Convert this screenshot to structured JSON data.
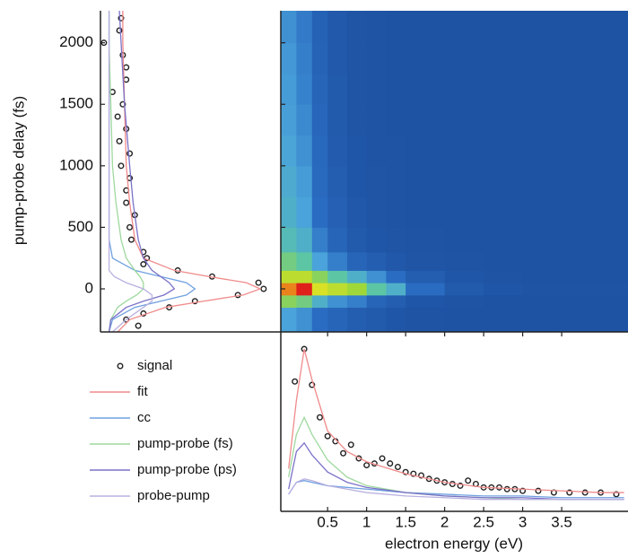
{
  "chart_data": [
    {
      "type": "line",
      "orientation": "horizontal",
      "ylabel": "pump-probe delay (fs)",
      "xlim": [
        -0.05,
        1.0
      ],
      "ylim": [
        -350,
        2260
      ],
      "yticks": [
        0,
        500,
        1000,
        1500,
        2000
      ],
      "series": [
        {
          "color": "#222222",
          "marker": "circle",
          "y": [
            -300,
            -250,
            -200,
            -150,
            -100,
            -50,
            0,
            50,
            100,
            150,
            200,
            250,
            300,
            400,
            500,
            600,
            700,
            800,
            900,
            1000,
            1100,
            1200,
            1300,
            1400,
            1500,
            1600,
            1700,
            1800,
            1900,
            2000,
            2100,
            2200
          ],
          "values": [
            0.17,
            0.1,
            0.2,
            0.35,
            0.5,
            0.75,
            0.9,
            0.87,
            0.6,
            0.4,
            0.2,
            0.22,
            0.2,
            0.13,
            0.12,
            0.15,
            0.1,
            0.1,
            0.12,
            0.07,
            0.12,
            0.06,
            0.1,
            0.05,
            0.08,
            0.02,
            0.1,
            0.1,
            0.08,
            -0.03,
            0.06,
            0.07
          ]
        },
        {
          "color": "#f08a8a",
          "y": [
            -350,
            -250,
            -150,
            -100,
            -50,
            0,
            50,
            100,
            150,
            250,
            400,
            700,
            1000,
            1500,
            2000,
            2260
          ],
          "values": [
            0.05,
            0.12,
            0.33,
            0.55,
            0.78,
            0.88,
            0.8,
            0.58,
            0.38,
            0.2,
            0.15,
            0.12,
            0.1,
            0.09,
            0.08,
            0.08
          ]
        },
        {
          "color": "#6fa0e0",
          "y": [
            -350,
            -250,
            -150,
            -100,
            -50,
            0,
            50,
            100,
            150,
            250,
            400,
            700,
            1000,
            1500,
            2000,
            2260
          ],
          "values": [
            0,
            0.02,
            0.15,
            0.3,
            0.45,
            0.5,
            0.45,
            0.3,
            0.15,
            0.02,
            0,
            0,
            0,
            0,
            0,
            0
          ]
        },
        {
          "color": "#9ed89e",
          "y": [
            -350,
            -250,
            -150,
            -100,
            -50,
            0,
            50,
            100,
            150,
            250,
            400,
            700,
            1000,
            1500,
            2000,
            2260
          ],
          "values": [
            0,
            0.01,
            0.05,
            0.1,
            0.16,
            0.2,
            0.2,
            0.18,
            0.15,
            0.1,
            0.07,
            0.04,
            0.02,
            0.01,
            0,
            0
          ]
        },
        {
          "color": "#7a72c8",
          "y": [
            -350,
            -250,
            -150,
            -100,
            -50,
            0,
            50,
            100,
            150,
            250,
            400,
            700,
            1000,
            1500,
            2000,
            2260
          ],
          "values": [
            0,
            0.01,
            0.1,
            0.2,
            0.32,
            0.38,
            0.35,
            0.3,
            0.25,
            0.2,
            0.17,
            0.14,
            0.12,
            0.09,
            0.07,
            0.06
          ]
        },
        {
          "color": "#b9b0e0",
          "y": [
            -350,
            -250,
            -150,
            -100,
            -50,
            0,
            50,
            100,
            150,
            250,
            400,
            700,
            1000,
            1500,
            2000,
            2260
          ],
          "values": [
            0.02,
            0.1,
            0.2,
            0.25,
            0.25,
            0.2,
            0.1,
            0.03,
            0,
            0,
            0,
            0,
            0,
            0,
            0,
            0
          ]
        }
      ]
    },
    {
      "type": "heatmap",
      "xbins": [
        -0.1,
        0.1,
        0.3,
        0.5,
        0.75,
        1,
        1.25,
        1.5,
        2,
        2.5,
        3,
        3.5,
        4.35
      ],
      "ybins": [
        -350,
        -150,
        -50,
        50,
        150,
        300,
        500,
        750,
        1000,
        1250,
        1500,
        1750,
        2000,
        2260
      ],
      "z": [
        [
          0.35,
          0.3,
          0.2,
          0.15,
          0.1,
          0.08,
          0.05,
          0.03,
          0.02,
          0.02,
          0.02,
          0.02
        ],
        [
          0.6,
          0.55,
          0.4,
          0.3,
          0.25,
          0.15,
          0.1,
          0.05,
          0.03,
          0.02,
          0.02,
          0.02
        ],
        [
          0.9,
          1.0,
          0.75,
          0.7,
          0.65,
          0.5,
          0.4,
          0.2,
          0.08,
          0.05,
          0.03,
          0.03
        ],
        [
          0.7,
          0.7,
          0.6,
          0.5,
          0.4,
          0.3,
          0.2,
          0.1,
          0.05,
          0.03,
          0.02,
          0.02
        ],
        [
          0.55,
          0.5,
          0.35,
          0.25,
          0.15,
          0.1,
          0.06,
          0.04,
          0.03,
          0.02,
          0.02,
          0.02
        ],
        [
          0.45,
          0.4,
          0.25,
          0.15,
          0.08,
          0.05,
          0.04,
          0.03,
          0.02,
          0.02,
          0.02,
          0.02
        ],
        [
          0.4,
          0.35,
          0.2,
          0.12,
          0.06,
          0.04,
          0.03,
          0.02,
          0.02,
          0.02,
          0.02,
          0.02
        ],
        [
          0.38,
          0.33,
          0.18,
          0.1,
          0.05,
          0.04,
          0.03,
          0.02,
          0.02,
          0.02,
          0.02,
          0.02
        ],
        [
          0.36,
          0.3,
          0.17,
          0.09,
          0.05,
          0.03,
          0.03,
          0.02,
          0.02,
          0.02,
          0.02,
          0.02
        ],
        [
          0.34,
          0.28,
          0.16,
          0.08,
          0.04,
          0.03,
          0.02,
          0.02,
          0.02,
          0.02,
          0.02,
          0.02
        ],
        [
          0.33,
          0.26,
          0.15,
          0.08,
          0.04,
          0.03,
          0.02,
          0.02,
          0.02,
          0.02,
          0.02,
          0.02
        ],
        [
          0.32,
          0.25,
          0.14,
          0.07,
          0.04,
          0.03,
          0.02,
          0.02,
          0.02,
          0.02,
          0.02,
          0.02
        ],
        [
          0.3,
          0.24,
          0.13,
          0.07,
          0.04,
          0.03,
          0.02,
          0.02,
          0.02,
          0.02,
          0.02,
          0.02
        ]
      ],
      "colorscale": [
        [
          0,
          "#1d4f9e"
        ],
        [
          0.2,
          "#2a6cc2"
        ],
        [
          0.35,
          "#4aa3da"
        ],
        [
          0.5,
          "#5cc6a4"
        ],
        [
          0.65,
          "#a0d83a"
        ],
        [
          0.8,
          "#f4e61c"
        ],
        [
          1,
          "#e0201a"
        ]
      ]
    },
    {
      "type": "line",
      "xlabel": "electron energy (eV)",
      "xlim": [
        -0.1,
        4.35
      ],
      "ylim": [
        -0.05,
        1.0
      ],
      "xticks": [
        0.5,
        1.0,
        1.5,
        2.0,
        2.5,
        3.0,
        3.5
      ],
      "series": [
        {
          "name": "signal",
          "color": "#222222",
          "marker": "circle",
          "x": [
            0.08,
            0.2,
            0.3,
            0.4,
            0.5,
            0.6,
            0.7,
            0.8,
            0.9,
            1.0,
            1.1,
            1.2,
            1.3,
            1.4,
            1.5,
            1.6,
            1.7,
            1.8,
            1.9,
            2.0,
            2.1,
            2.2,
            2.3,
            2.4,
            2.5,
            2.6,
            2.7,
            2.8,
            2.9,
            3.0,
            3.2,
            3.4,
            3.6,
            3.8,
            4.0,
            4.2
          ],
          "values": [
            0.71,
            0.9,
            0.69,
            0.5,
            0.39,
            0.36,
            0.29,
            0.34,
            0.26,
            0.22,
            0.23,
            0.26,
            0.23,
            0.21,
            0.18,
            0.17,
            0.16,
            0.14,
            0.13,
            0.12,
            0.11,
            0.1,
            0.13,
            0.11,
            0.09,
            0.09,
            0.09,
            0.08,
            0.08,
            0.07,
            0.07,
            0.06,
            0.06,
            0.06,
            0.06,
            0.05
          ]
        },
        {
          "name": "fit",
          "color": "#f08a8a",
          "x": [
            0,
            0.1,
            0.2,
            0.3,
            0.5,
            0.75,
            1,
            1.5,
            2,
            2.5,
            3,
            3.5,
            4,
            4.3
          ],
          "values": [
            0.2,
            0.6,
            0.9,
            0.72,
            0.42,
            0.3,
            0.24,
            0.17,
            0.12,
            0.09,
            0.08,
            0.07,
            0.06,
            0.06
          ]
        },
        {
          "name": "cc",
          "color": "#6fa0e0",
          "x": [
            0,
            0.1,
            0.2,
            0.3,
            0.5,
            0.75,
            1,
            1.5,
            2,
            2.5,
            3,
            3.5,
            4,
            4.3
          ],
          "values": [
            0.05,
            0.12,
            0.13,
            0.12,
            0.1,
            0.09,
            0.08,
            0.06,
            0.05,
            0.04,
            0.04,
            0.03,
            0.03,
            0.03
          ]
        },
        {
          "name": "pump-probe (fs)",
          "color": "#9ed89e",
          "x": [
            0,
            0.1,
            0.2,
            0.3,
            0.5,
            0.75,
            1,
            1.5,
            2,
            2.5,
            3,
            3.5,
            4,
            4.3
          ],
          "values": [
            0.15,
            0.4,
            0.5,
            0.4,
            0.25,
            0.15,
            0.1,
            0.06,
            0.04,
            0.03,
            0.02,
            0.02,
            0.02,
            0.02
          ]
        },
        {
          "name": "pump-probe (ps)",
          "color": "#7a72c8",
          "x": [
            0,
            0.1,
            0.2,
            0.3,
            0.5,
            0.75,
            1,
            1.5,
            2,
            2.5,
            3,
            3.5,
            4,
            4.3
          ],
          "values": [
            0.08,
            0.3,
            0.35,
            0.28,
            0.18,
            0.12,
            0.09,
            0.06,
            0.04,
            0.03,
            0.03,
            0.02,
            0.02,
            0.02
          ]
        },
        {
          "name": "probe-pump",
          "color": "#b9b0e0",
          "x": [
            0,
            0.1,
            0.2,
            0.3,
            0.5,
            0.75,
            1,
            1.5,
            2,
            2.5,
            3,
            3.5,
            4,
            4.3
          ],
          "values": [
            0.05,
            0.12,
            0.14,
            0.13,
            0.1,
            0.08,
            0.06,
            0.04,
            0.03,
            0.02,
            0.02,
            0.02,
            0.02,
            0.02
          ]
        }
      ]
    }
  ]
}
